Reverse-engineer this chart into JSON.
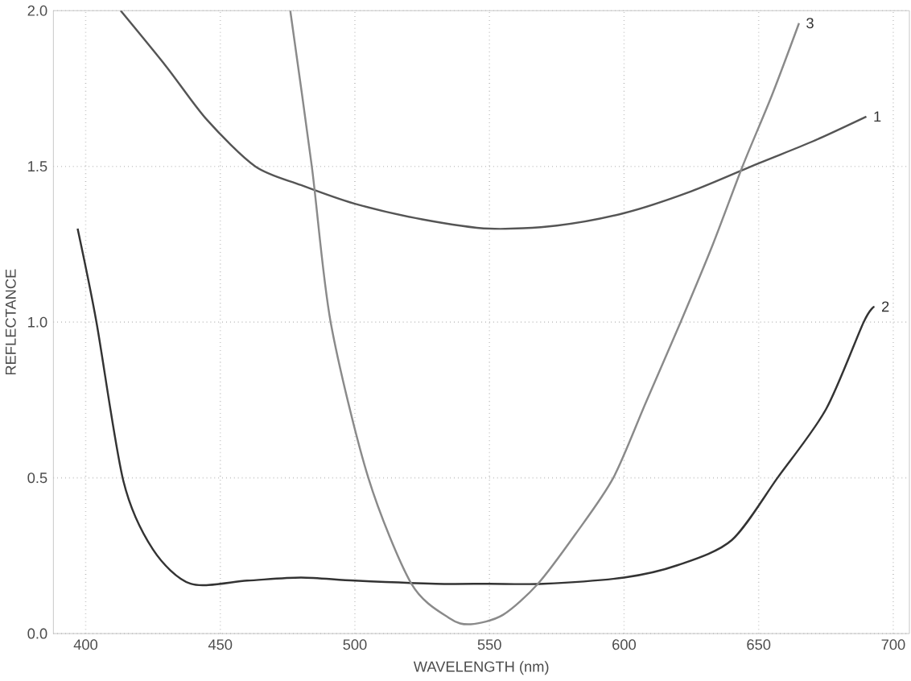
{
  "chart_data": {
    "type": "line",
    "xlabel": "WAVELENGTH (nm)",
    "ylabel": "REFLECTANCE",
    "xlim": [
      388,
      706
    ],
    "ylim": [
      0,
      2.0
    ],
    "xticks": [
      400,
      450,
      500,
      550,
      600,
      650,
      700
    ],
    "yticks": [
      {
        "value": 0,
        "label": "0.0"
      },
      {
        "value": 0.5,
        "label": "0.5"
      },
      {
        "value": 1,
        "label": "1.0"
      },
      {
        "value": 1.5,
        "label": "1.5"
      },
      {
        "value": 2,
        "label": "2.0"
      }
    ],
    "grid": true,
    "legend": false,
    "marker": "none",
    "line_style": "solid",
    "series": [
      {
        "name": "1",
        "color": "#555555",
        "x": [
          413,
          430,
          445,
          463,
          480,
          500,
          525,
          550,
          575,
          600,
          625,
          650,
          670,
          690
        ],
        "values": [
          2.0,
          1.82,
          1.65,
          1.5,
          1.44,
          1.38,
          1.33,
          1.3,
          1.31,
          1.35,
          1.42,
          1.51,
          1.58,
          1.66
        ]
      },
      {
        "name": "2",
        "color": "#333333",
        "x": [
          397,
          404,
          414,
          425,
          439,
          460,
          480,
          500,
          530,
          550,
          570,
          600,
          620,
          640,
          657,
          675,
          689,
          693
        ],
        "values": [
          1.3,
          1.0,
          0.49,
          0.27,
          0.16,
          0.17,
          0.18,
          0.17,
          0.16,
          0.16,
          0.16,
          0.18,
          0.22,
          0.3,
          0.5,
          0.72,
          1.0,
          1.05
        ]
      },
      {
        "name": "3",
        "color": "#8a8a8a",
        "x": [
          476,
          484,
          491,
          505,
          521,
          535,
          543,
          555,
          568,
          582,
          596,
          608,
          621,
          633,
          644,
          655,
          665
        ],
        "values": [
          2.0,
          1.5,
          1.0,
          0.5,
          0.16,
          0.05,
          0.03,
          0.06,
          0.16,
          0.32,
          0.5,
          0.74,
          1.0,
          1.25,
          1.5,
          1.73,
          1.96
        ]
      }
    ]
  }
}
